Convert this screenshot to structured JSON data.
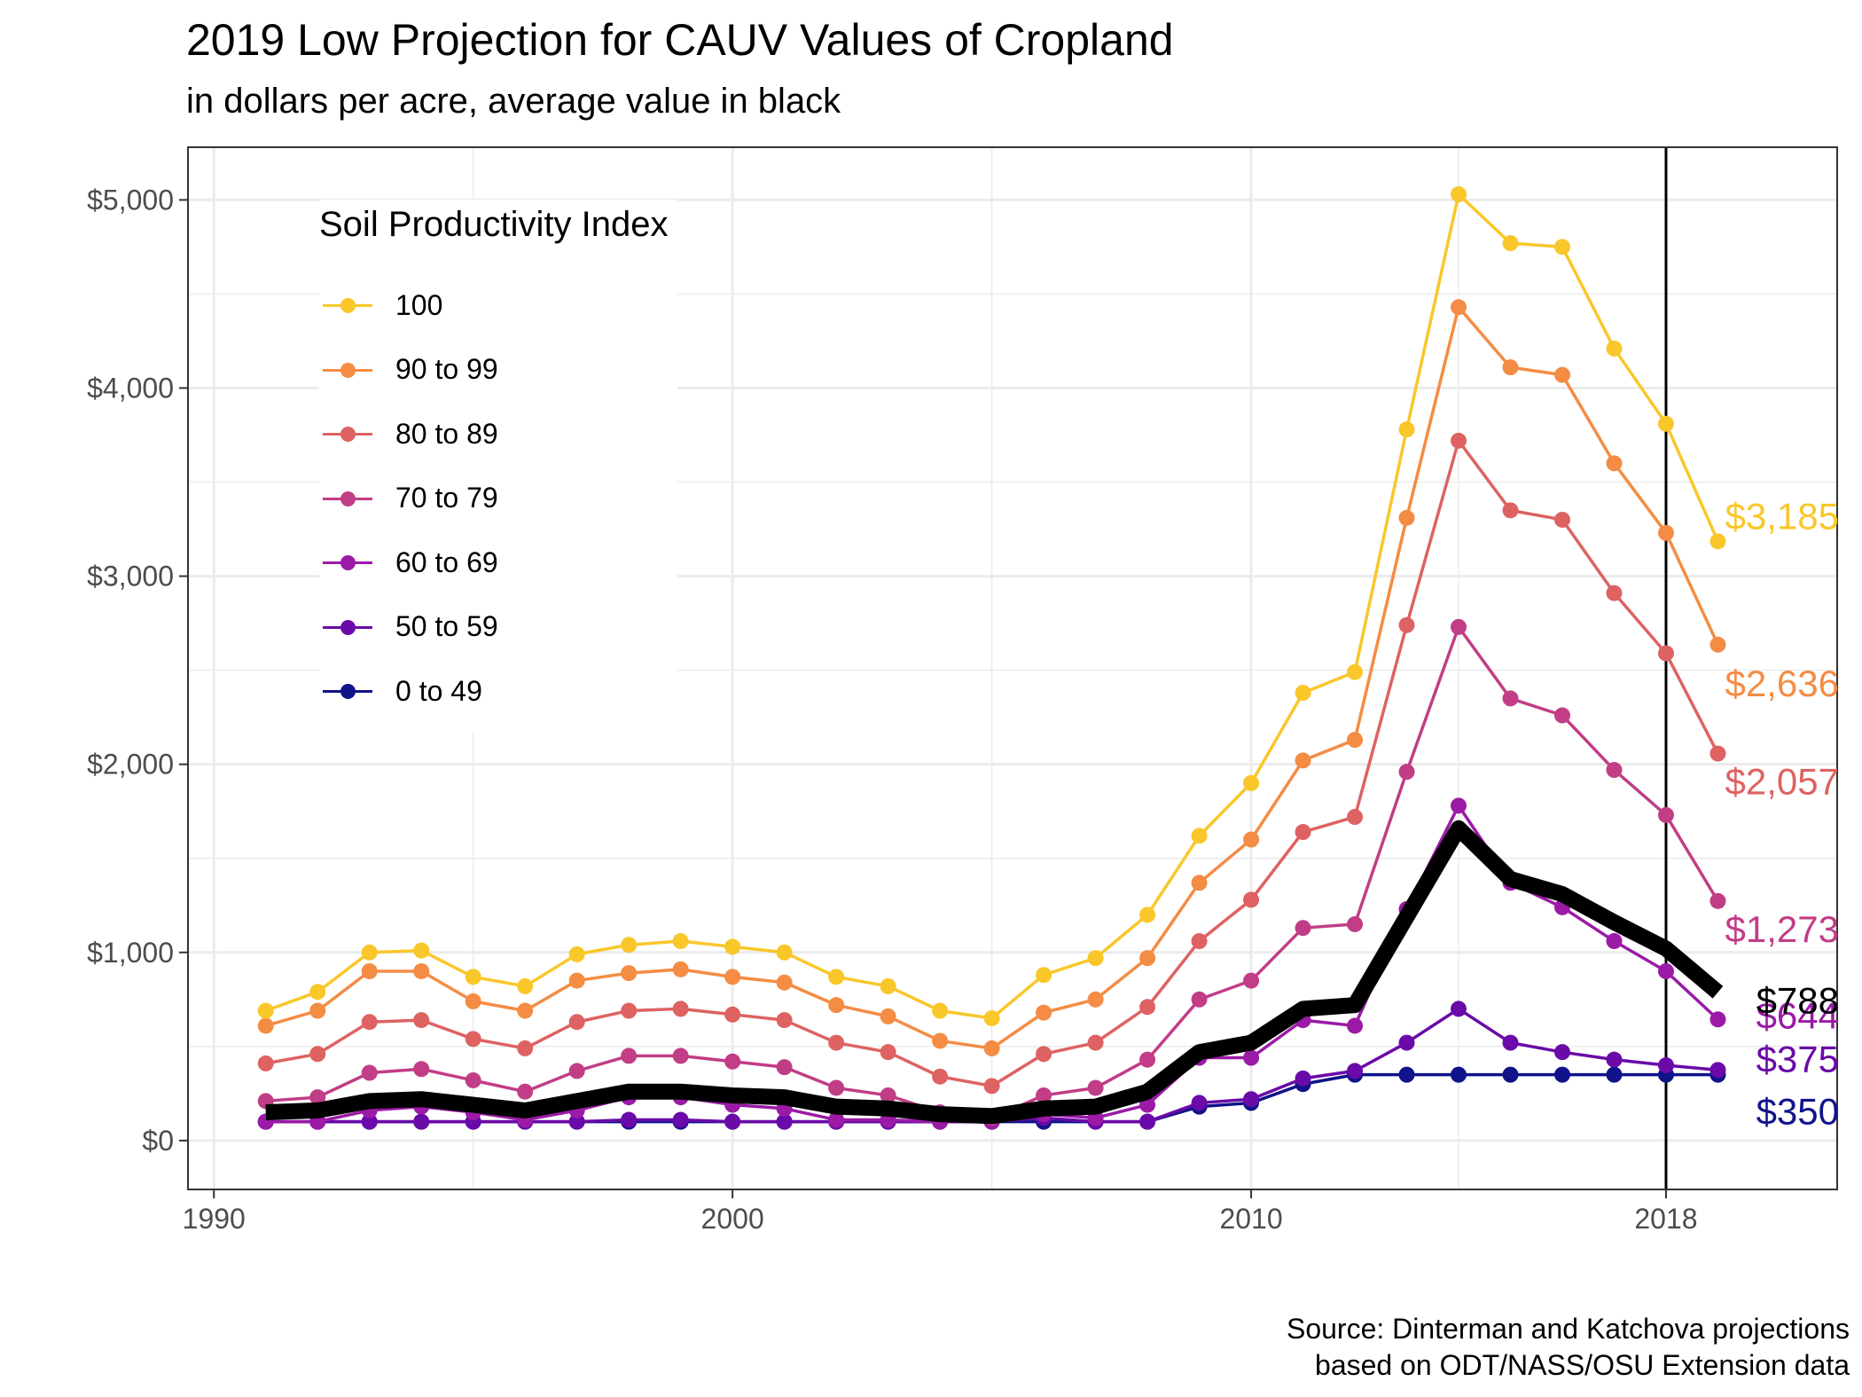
{
  "header": {
    "title": "2019 Low Projection for CAUV Values of Cropland",
    "subtitle": "in dollars per acre, average value in black"
  },
  "caption": {
    "line1": "Source: Dinterman and Katchova projections",
    "line2": "based on ODT/NASS/OSU Extension data"
  },
  "legend": {
    "title": "Soil Productivity Index",
    "placement": "top-left",
    "items": [
      {
        "label": "100",
        "color": "#F9C72A"
      },
      {
        "label": "90 to 99",
        "color": "#F48C44"
      },
      {
        "label": "80 to 89",
        "color": "#DE6262"
      },
      {
        "label": "70 to 79",
        "color": "#C13D86"
      },
      {
        "label": "60 to 69",
        "color": "#9B1AA6"
      },
      {
        "label": "50 to 59",
        "color": "#6A0AA8"
      },
      {
        "label": "0 to 49",
        "color": "#10138A"
      }
    ]
  },
  "chart_data": {
    "type": "line",
    "title": "2019 Low Projection for CAUV Values of Cropland",
    "subtitle": "in dollars per acre, average value in black",
    "x": [
      1991,
      1992,
      1993,
      1994,
      1995,
      1996,
      1997,
      1998,
      1999,
      2000,
      2001,
      2002,
      2003,
      2004,
      2005,
      2006,
      2007,
      2008,
      2009,
      2010,
      2011,
      2012,
      2013,
      2014,
      2015,
      2016,
      2017,
      2018,
      2019
    ],
    "xlim": [
      1989.5,
      2021.3
    ],
    "ylim": [
      -260,
      5280
    ],
    "x_ticks": [
      1990,
      2000,
      2010,
      2018
    ],
    "x_tick_labels": [
      "1990",
      "2000",
      "2010",
      "2018"
    ],
    "y_ticks": [
      0,
      1000,
      2000,
      3000,
      4000,
      5000
    ],
    "y_tick_labels": [
      "$0",
      "$1,000",
      "$2,000",
      "$3,000",
      "$4,000",
      "$5,000"
    ],
    "grid": true,
    "vline_x": 2018,
    "series": [
      {
        "name": "100",
        "color": "#F9C72A",
        "values": [
          690,
          790,
          1000,
          1010,
          870,
          820,
          990,
          1040,
          1060,
          1030,
          1000,
          870,
          820,
          690,
          650,
          880,
          970,
          1200,
          1620,
          1900,
          2380,
          2490,
          3780,
          5030,
          4770,
          4750,
          4210,
          3810,
          3185
        ],
        "end_label": "$3,185"
      },
      {
        "name": "90 to 99",
        "color": "#F48C44",
        "values": [
          610,
          690,
          900,
          900,
          740,
          690,
          850,
          890,
          910,
          870,
          840,
          720,
          660,
          530,
          490,
          680,
          750,
          970,
          1370,
          1600,
          2020,
          2130,
          3310,
          4430,
          4110,
          4070,
          3600,
          3230,
          2636
        ],
        "end_label": "$2,636"
      },
      {
        "name": "80 to 89",
        "color": "#DE6262",
        "values": [
          410,
          460,
          630,
          640,
          540,
          490,
          630,
          690,
          700,
          670,
          640,
          520,
          470,
          340,
          290,
          460,
          520,
          710,
          1060,
          1280,
          1640,
          1720,
          2740,
          3720,
          3350,
          3300,
          2910,
          2590,
          2057
        ],
        "end_label": "$2,057"
      },
      {
        "name": "70 to 79",
        "color": "#C13D86",
        "values": [
          210,
          230,
          360,
          380,
          320,
          260,
          370,
          450,
          450,
          420,
          390,
          280,
          240,
          150,
          120,
          240,
          280,
          430,
          750,
          850,
          1130,
          1150,
          1960,
          2730,
          2350,
          2260,
          1970,
          1730,
          1273
        ],
        "end_label": "$1,273"
      },
      {
        "name": "60 to 69",
        "color": "#9B1AA6",
        "values": [
          100,
          100,
          160,
          180,
          150,
          110,
          160,
          230,
          230,
          190,
          170,
          110,
          110,
          100,
          100,
          140,
          120,
          190,
          440,
          440,
          640,
          610,
          1230,
          1780,
          1370,
          1240,
          1060,
          900,
          644
        ],
        "end_label": "$644"
      },
      {
        "name": "50 to 59",
        "color": "#6A0AA8",
        "values": [
          100,
          100,
          100,
          100,
          100,
          100,
          100,
          110,
          110,
          100,
          100,
          100,
          100,
          100,
          100,
          120,
          100,
          100,
          200,
          220,
          330,
          370,
          520,
          700,
          520,
          470,
          430,
          400,
          375
        ],
        "end_label": "$375"
      },
      {
        "name": "0 to 49",
        "color": "#10138A",
        "values": [
          100,
          100,
          100,
          100,
          100,
          100,
          100,
          100,
          100,
          100,
          100,
          100,
          100,
          100,
          100,
          100,
          100,
          100,
          180,
          200,
          300,
          350,
          350,
          350,
          350,
          350,
          350,
          350,
          350
        ],
        "end_label": "$350"
      },
      {
        "name": "Average",
        "color": "#000000",
        "bold": true,
        "values": [
          150,
          160,
          210,
          220,
          190,
          160,
          210,
          260,
          260,
          240,
          230,
          180,
          170,
          140,
          130,
          170,
          180,
          260,
          470,
          520,
          700,
          720,
          1190,
          1660,
          1390,
          1310,
          1160,
          1020,
          788
        ],
        "end_label": "$788"
      }
    ]
  }
}
